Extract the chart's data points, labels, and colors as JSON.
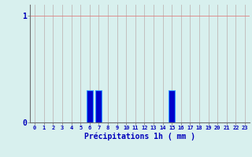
{
  "hours": [
    0,
    1,
    2,
    3,
    4,
    5,
    6,
    7,
    8,
    9,
    10,
    11,
    12,
    13,
    14,
    15,
    16,
    17,
    18,
    19,
    20,
    21,
    22,
    23
  ],
  "values": [
    0,
    0,
    0,
    0,
    0,
    0,
    0.3,
    0.3,
    0,
    0,
    0,
    0,
    0,
    0,
    0,
    0.3,
    0,
    0,
    0,
    0,
    0,
    0,
    0,
    0
  ],
  "bar_color": "#0000cc",
  "bar_edge_color": "#3399ff",
  "background_color": "#d8f0ee",
  "grid_color_v": "#c0b8b8",
  "grid_color_h": "#e08080",
  "xlabel": "Précipitations 1h ( mm )",
  "xlabel_color": "#0000bb",
  "tick_color": "#0000bb",
  "axis_color": "#707070",
  "ylim": [
    0,
    1.1
  ],
  "ytick_vals": [
    0,
    1
  ],
  "ytick_labels": [
    "0",
    "1"
  ],
  "xlim": [
    -0.5,
    23.5
  ],
  "bar_width": 0.7
}
